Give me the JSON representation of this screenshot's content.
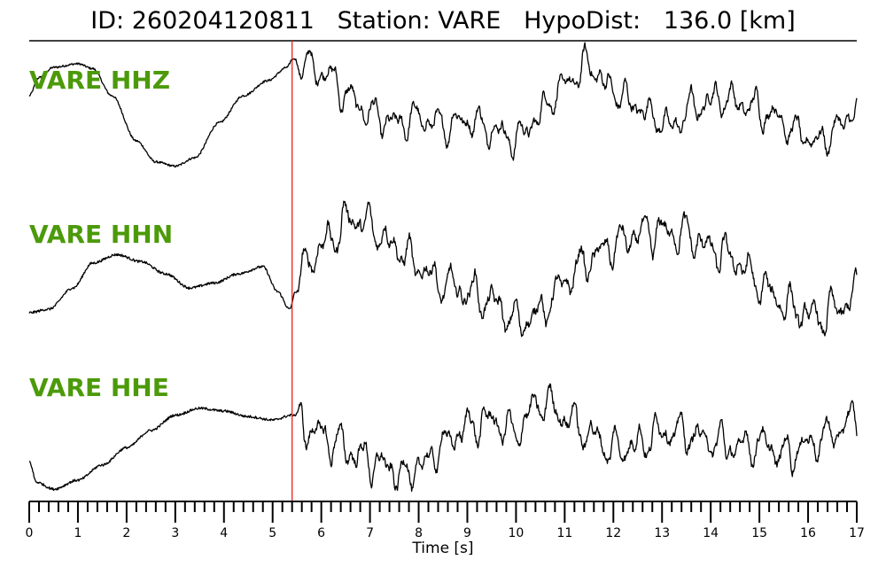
{
  "title": {
    "id_label": "ID:",
    "id_value": "260204120811",
    "station_label": "Station:",
    "station_value": "VARE",
    "dist_label": "HypoDist:",
    "dist_value": "136.0",
    "dist_unit": "[km]"
  },
  "colors": {
    "trace": "#000000",
    "channel_label": "#4c9a0a",
    "pick_line": "#e8201c"
  },
  "chart_data": {
    "type": "line",
    "xlabel": "Time [s]",
    "xlim": [
      0,
      17
    ],
    "major_ticks": [
      0,
      1,
      2,
      3,
      4,
      5,
      6,
      7,
      8,
      9,
      10,
      11,
      12,
      13,
      14,
      15,
      16,
      17
    ],
    "minor_tick_step": 0.2,
    "pick_time": 5.4,
    "series": [
      {
        "name": "VARE HHZ",
        "keypoints": [
          [
            0,
            0.25
          ],
          [
            0.2,
            0.55
          ],
          [
            0.5,
            0.72
          ],
          [
            1,
            0.78
          ],
          [
            1.3,
            0.7
          ],
          [
            1.7,
            0.25
          ],
          [
            2.2,
            -0.5
          ],
          [
            2.6,
            -0.85
          ],
          [
            3,
            -0.92
          ],
          [
            3.4,
            -0.78
          ],
          [
            3.9,
            -0.2
          ],
          [
            4.4,
            0.25
          ],
          [
            4.9,
            0.5
          ],
          [
            5.3,
            0.72
          ],
          [
            5.4,
            0.85
          ],
          [
            5.7,
            0.75
          ],
          [
            6.1,
            0.62
          ],
          [
            6.6,
            0.2
          ],
          [
            7,
            -0.05
          ],
          [
            7.5,
            -0.22
          ],
          [
            8,
            -0.12
          ],
          [
            8.5,
            -0.25
          ],
          [
            9,
            -0.15
          ],
          [
            9.5,
            -0.3
          ],
          [
            10,
            -0.48
          ],
          [
            10.4,
            -0.15
          ],
          [
            10.8,
            0.28
          ],
          [
            11.2,
            0.55
          ],
          [
            11.5,
            0.78
          ],
          [
            11.9,
            0.38
          ],
          [
            12.4,
            0.12
          ],
          [
            12.8,
            -0.08
          ],
          [
            13.2,
            -0.28
          ],
          [
            13.6,
            0.05
          ],
          [
            14.2,
            0.22
          ],
          [
            14.8,
            0.08
          ],
          [
            15.3,
            -0.08
          ],
          [
            15.8,
            -0.38
          ],
          [
            16.2,
            -0.52
          ],
          [
            16.6,
            -0.3
          ],
          [
            17,
            0.05
          ]
        ]
      },
      {
        "name": "VARE HHN",
        "keypoints": [
          [
            0,
            -0.6
          ],
          [
            0.4,
            -0.55
          ],
          [
            0.9,
            -0.25
          ],
          [
            1.3,
            0.1
          ],
          [
            1.8,
            0.22
          ],
          [
            2.3,
            0.12
          ],
          [
            2.8,
            -0.05
          ],
          [
            3.3,
            -0.25
          ],
          [
            3.8,
            -0.18
          ],
          [
            4.3,
            -0.05
          ],
          [
            4.8,
            0.05
          ],
          [
            5.1,
            -0.3
          ],
          [
            5.35,
            -0.55
          ],
          [
            5.5,
            -0.2
          ],
          [
            5.8,
            0.2
          ],
          [
            6.2,
            0.45
          ],
          [
            6.6,
            0.75
          ],
          [
            7,
            0.62
          ],
          [
            7.5,
            0.35
          ],
          [
            8,
            0.05
          ],
          [
            8.5,
            -0.2
          ],
          [
            9,
            -0.3
          ],
          [
            9.5,
            -0.45
          ],
          [
            10,
            -0.72
          ],
          [
            10.3,
            -0.68
          ],
          [
            10.7,
            -0.45
          ],
          [
            11,
            -0.15
          ],
          [
            11.5,
            0.15
          ],
          [
            12,
            0.35
          ],
          [
            12.5,
            0.5
          ],
          [
            13,
            0.55
          ],
          [
            13.5,
            0.5
          ],
          [
            14,
            0.3
          ],
          [
            14.5,
            0.15
          ],
          [
            15,
            -0.2
          ],
          [
            15.4,
            -0.42
          ],
          [
            15.8,
            -0.58
          ],
          [
            16.2,
            -0.68
          ],
          [
            16.6,
            -0.55
          ],
          [
            17,
            -0.35
          ]
        ]
      },
      {
        "name": "VARE HHE",
        "keypoints": [
          [
            0,
            -0.55
          ],
          [
            0.15,
            -0.85
          ],
          [
            0.5,
            -0.95
          ],
          [
            1,
            -0.82
          ],
          [
            1.5,
            -0.6
          ],
          [
            2,
            -0.35
          ],
          [
            2.5,
            -0.1
          ],
          [
            3,
            0.12
          ],
          [
            3.5,
            0.22
          ],
          [
            4,
            0.18
          ],
          [
            4.5,
            0.1
          ],
          [
            5,
            0.05
          ],
          [
            5.4,
            0.12
          ],
          [
            5.8,
            -0.1
          ],
          [
            6.3,
            -0.28
          ],
          [
            6.8,
            -0.48
          ],
          [
            7.3,
            -0.62
          ],
          [
            7.7,
            -0.75
          ],
          [
            8.1,
            -0.6
          ],
          [
            8.5,
            -0.3
          ],
          [
            9,
            -0.05
          ],
          [
            9.5,
            0.05
          ],
          [
            10,
            -0.15
          ],
          [
            10.3,
            0.18
          ],
          [
            10.6,
            0.32
          ],
          [
            11,
            0.1
          ],
          [
            11.5,
            -0.15
          ],
          [
            12,
            -0.38
          ],
          [
            12.5,
            -0.3
          ],
          [
            13,
            -0.1
          ],
          [
            13.5,
            -0.15
          ],
          [
            14,
            -0.25
          ],
          [
            14.5,
            -0.35
          ],
          [
            15,
            -0.28
          ],
          [
            15.5,
            -0.45
          ],
          [
            16,
            -0.3
          ],
          [
            16.5,
            -0.15
          ],
          [
            17,
            0.08
          ]
        ]
      }
    ]
  }
}
